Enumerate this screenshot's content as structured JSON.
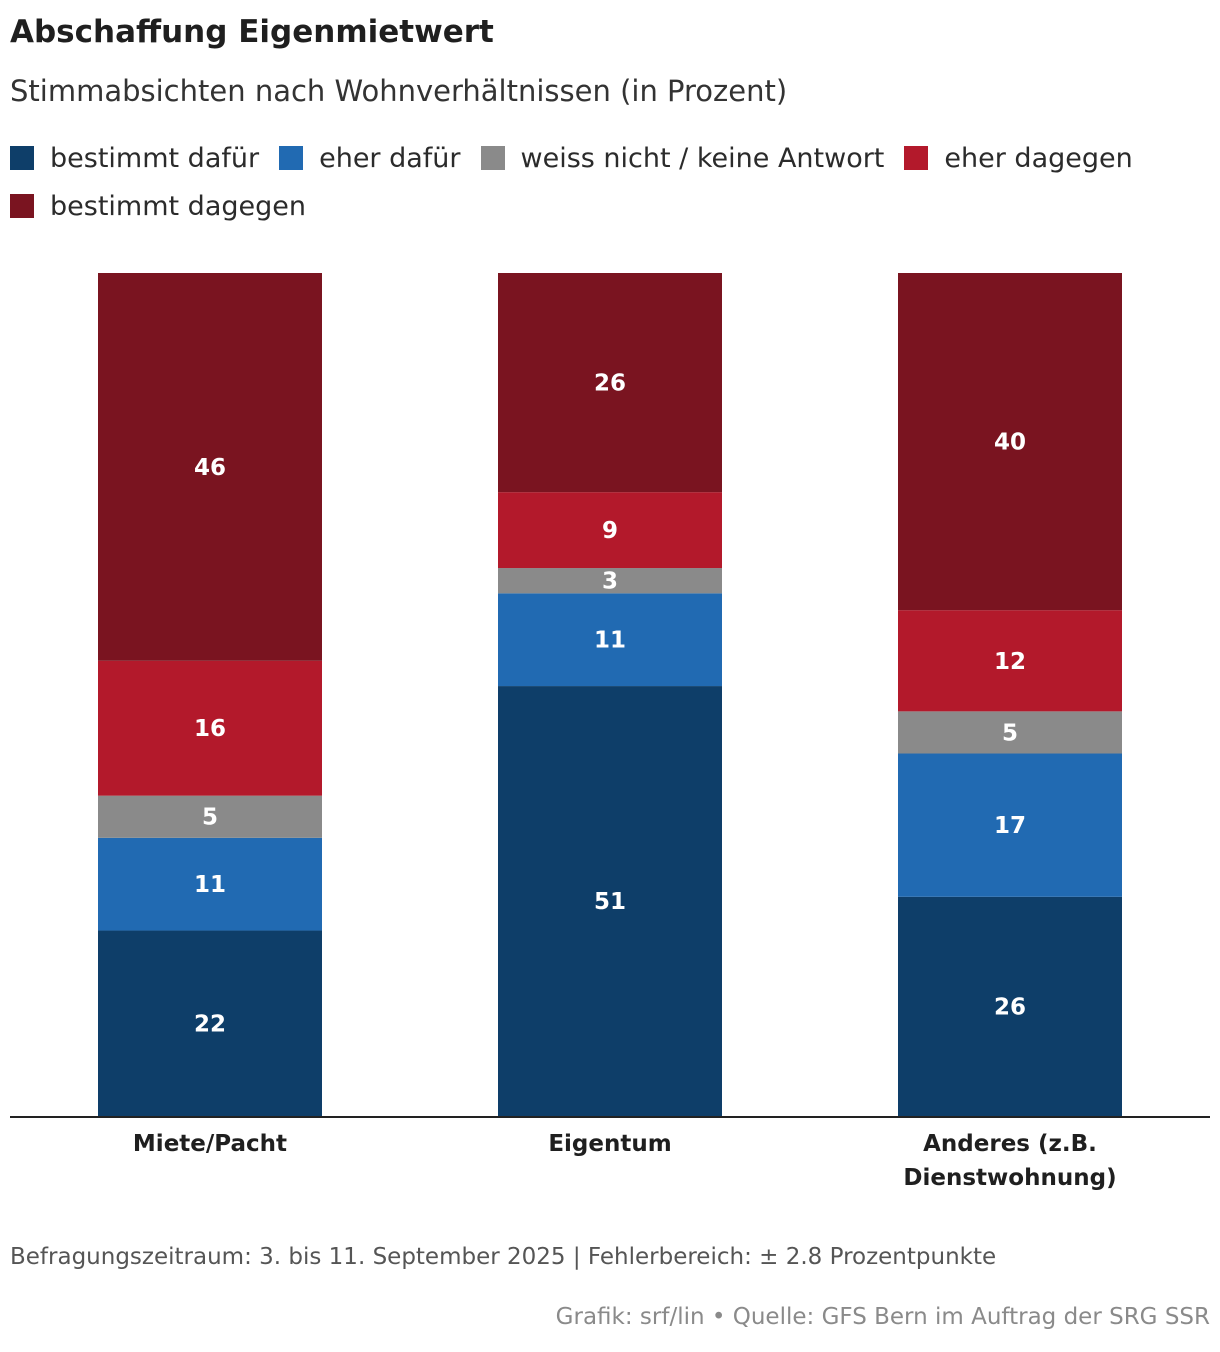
{
  "title": "Abschaffung Eigenmietwert",
  "subtitle": "Stimmabsichten nach Wohnverhältnissen (in Prozent)",
  "footnote": "Befragungszeitraum: 3. bis 11. September 2025 | Fehlerbereich: ± 2.8 Prozentpunkte",
  "credit": "Grafik: srf/lin • Quelle: GFS Bern im Auftrag der SRG SSR",
  "chart_data": {
    "type": "bar",
    "stacked": true,
    "title": "Abschaffung Eigenmietwert",
    "subtitle": "Stimmabsichten nach Wohnverhältnissen (in Prozent)",
    "categories": [
      [
        "Miete/Pacht"
      ],
      [
        "Eigentum"
      ],
      [
        "Anderes (z.B.",
        "Dienstwohnung)"
      ]
    ],
    "ylim": [
      0,
      100
    ],
    "grid": false,
    "legend_position": "top-left",
    "series": [
      {
        "name": "bestimmt dafür",
        "color": "#0e3e69",
        "values": [
          22,
          51,
          26
        ]
      },
      {
        "name": "eher dafür",
        "color": "#216ab2",
        "values": [
          11,
          11,
          17
        ]
      },
      {
        "name": "weiss nicht / keine Antwort",
        "color": "#8a8a8a",
        "values": [
          5,
          3,
          5
        ]
      },
      {
        "name": "eher dagegen",
        "color": "#b3192b",
        "values": [
          16,
          9,
          12
        ]
      },
      {
        "name": "bestimmt dagegen",
        "color": "#7a1420",
        "values": [
          46,
          26,
          40
        ]
      }
    ]
  }
}
